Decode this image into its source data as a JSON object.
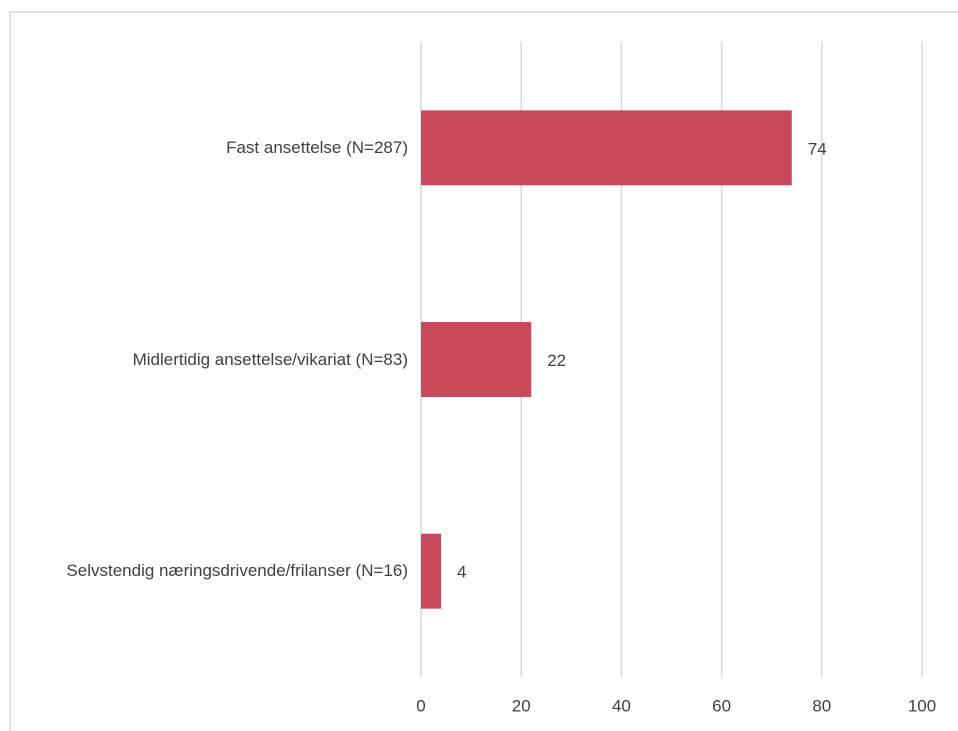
{
  "chart_data": {
    "type": "barh",
    "categories": [
      "Fast ansettelse (N=287)",
      "Midlertidig ansettelse/vikariat (N=83)",
      "Selvstendig næringsdrivende/frilanser (N=16)"
    ],
    "values": [
      74,
      22,
      4
    ],
    "color": "#c84a5a",
    "xlim": [
      0,
      100
    ],
    "xticks": [
      0,
      20,
      40,
      60,
      80,
      100
    ],
    "grid": true
  }
}
